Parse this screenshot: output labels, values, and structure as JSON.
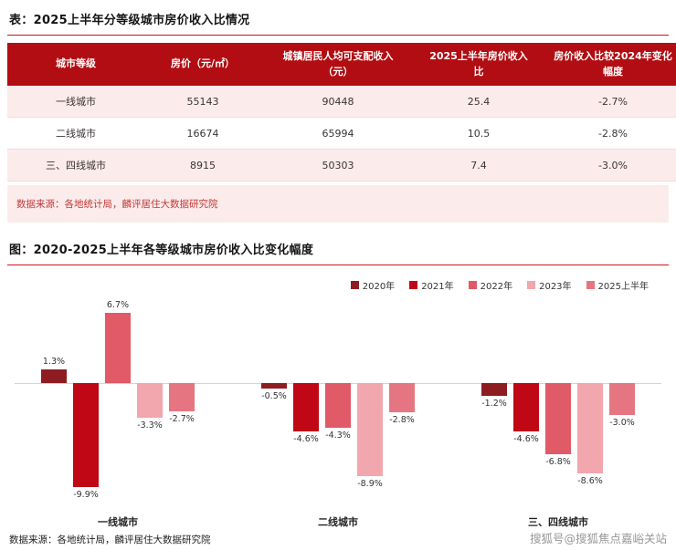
{
  "page": {
    "watermark": "搜狐号@搜狐焦点嘉峪关站"
  },
  "colors": {
    "table_header_bg": "#b20d12",
    "row_highlight_bg": "#fcebeb",
    "title_underline_red": "#d01616",
    "table_source_text": "#c03a3a"
  },
  "chart_data": [
    {
      "type": "table",
      "title": "表：2025上半年分等级城市房价收入比情况",
      "columns": [
        "城市等级",
        "房价（元/㎡）",
        "城镇居民人均可支配收入（元）",
        "2025上半年房价收入比",
        "房价收入比较2024年变化幅度"
      ],
      "rows": [
        [
          "一线城市",
          "55143",
          "90448",
          "25.4",
          "-2.7%"
        ],
        [
          "二线城市",
          "16674",
          "65994",
          "10.5",
          "-2.8%"
        ],
        [
          "三、四线城市",
          "8915",
          "50303",
          "7.4",
          "-3.0%"
        ]
      ],
      "source": "数据来源：各地统计局，麟评居住大数据研究院"
    },
    {
      "type": "bar",
      "title": "图：2020-2025上半年各等级城市房价收入比变化幅度",
      "categories": [
        "一线城市",
        "二线城市",
        "三、四线城市"
      ],
      "series": [
        {
          "name": "2020年",
          "color": "#8e1d22",
          "values": [
            1.3,
            -0.5,
            -1.2
          ]
        },
        {
          "name": "2021年",
          "color": "#c00715",
          "values": [
            -9.9,
            -4.6,
            -4.6
          ]
        },
        {
          "name": "2022年",
          "color": "#e05a68",
          "values": [
            6.7,
            -4.3,
            -6.8
          ]
        },
        {
          "name": "2023年",
          "color": "#f2a6ae",
          "values": [
            -3.3,
            -8.9,
            -8.6
          ]
        },
        {
          "name": "2025上半年",
          "color": "#e57681",
          "values": [
            -2.7,
            -2.8,
            -3.0
          ]
        }
      ],
      "unit": "%",
      "ylim": [
        -11,
        8
      ],
      "grid": false,
      "legend_position": "top-right",
      "value_labels": true,
      "source": "数据来源：各地统计局，麟评居住大数据研究院"
    }
  ]
}
